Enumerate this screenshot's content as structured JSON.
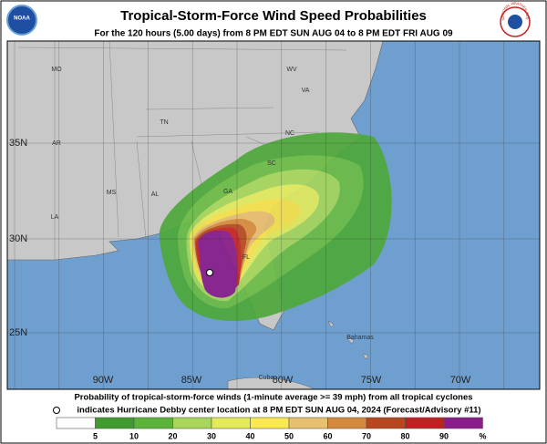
{
  "header": {
    "title": "Tropical-Storm-Force Wind Speed Probabilities",
    "subtitle": "For the 120 hours (5.00 days) from 8 PM EDT SUN AUG 04 to 8 PM EDT FRI AUG 09",
    "left_logo": "NOAA",
    "right_logo": "NATIONAL WEATHER SERVICE"
  },
  "map": {
    "states": [
      "MO",
      "WV",
      "VA",
      "AR",
      "TN",
      "NC",
      "SC",
      "MS",
      "AL",
      "GA",
      "LA",
      "FL"
    ],
    "places": [
      "Bahamas",
      "Cuba"
    ],
    "latitudes": [
      "35N",
      "30N",
      "25N"
    ],
    "longitudes": [
      "90W",
      "85W",
      "80W",
      "75W",
      "70W"
    ]
  },
  "footer": {
    "line1": "Probability of tropical-storm-force winds (1-minute average >= 39 mph) from all tropical cyclones",
    "line2": "indicates Hurricane Debby center location at 8 PM EDT SUN AUG 04, 2024 (Forecast/Advisory #11)"
  },
  "legend": {
    "ticks": [
      5,
      10,
      20,
      30,
      40,
      50,
      60,
      70,
      80,
      90
    ],
    "unit": "%"
  }
}
